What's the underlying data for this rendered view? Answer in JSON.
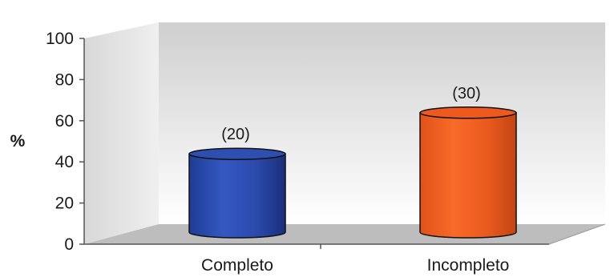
{
  "chart_data": {
    "type": "bar",
    "title": "",
    "xlabel": "",
    "ylabel": "%",
    "ylim": [
      0,
      100
    ],
    "yticks": [
      0,
      20,
      40,
      60,
      80,
      100
    ],
    "categories": [
      "Completo",
      "Incompleto"
    ],
    "values": [
      40,
      60
    ],
    "data_labels": [
      "(20)",
      "(30)"
    ],
    "bar_colors": [
      "#2e4fb0",
      "#ee5a1e"
    ],
    "grid": false,
    "legend": "none",
    "style": "3d-cylinder"
  }
}
